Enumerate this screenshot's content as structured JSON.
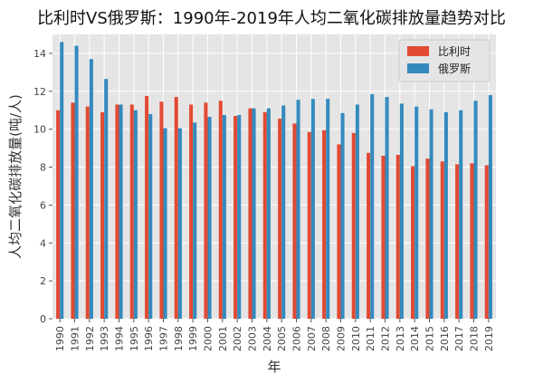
{
  "chart_data": {
    "type": "bar",
    "title": "比利时VS俄罗斯：1990年-2019年人均二氧化碳排放量趋势对比",
    "xlabel": "年",
    "ylabel": "人均二氧化碳排放量(吨/人)",
    "ylim": [
      0,
      15
    ],
    "yticks": [
      0,
      2,
      4,
      6,
      8,
      10,
      12,
      14
    ],
    "grid": true,
    "legend_position": "top-right",
    "categories": [
      "1990",
      "1991",
      "1992",
      "1993",
      "1994",
      "1995",
      "1996",
      "1997",
      "1998",
      "1999",
      "2000",
      "2001",
      "2002",
      "2003",
      "2004",
      "2005",
      "2006",
      "2007",
      "2008",
      "2009",
      "2010",
      "2011",
      "2012",
      "2013",
      "2014",
      "2015",
      "2016",
      "2017",
      "2018",
      "2019"
    ],
    "series": [
      {
        "name": "比利时",
        "color": "#E24A33",
        "values": [
          11.0,
          11.4,
          11.2,
          10.9,
          11.3,
          11.3,
          11.75,
          11.45,
          11.7,
          11.3,
          11.4,
          11.5,
          10.7,
          11.1,
          10.9,
          10.55,
          10.3,
          9.85,
          9.95,
          9.2,
          9.8,
          8.75,
          8.6,
          8.65,
          8.05,
          8.45,
          8.3,
          8.15,
          8.2,
          8.1
        ]
      },
      {
        "name": "俄罗斯",
        "color": "#348ABD",
        "values": [
          14.6,
          14.4,
          13.7,
          12.65,
          11.3,
          11.0,
          10.8,
          10.05,
          10.05,
          10.35,
          10.65,
          10.75,
          10.75,
          11.1,
          11.1,
          11.25,
          11.55,
          11.6,
          11.6,
          10.85,
          11.3,
          11.85,
          11.7,
          11.35,
          11.2,
          11.05,
          10.9,
          11.0,
          11.5,
          11.8
        ]
      }
    ]
  }
}
